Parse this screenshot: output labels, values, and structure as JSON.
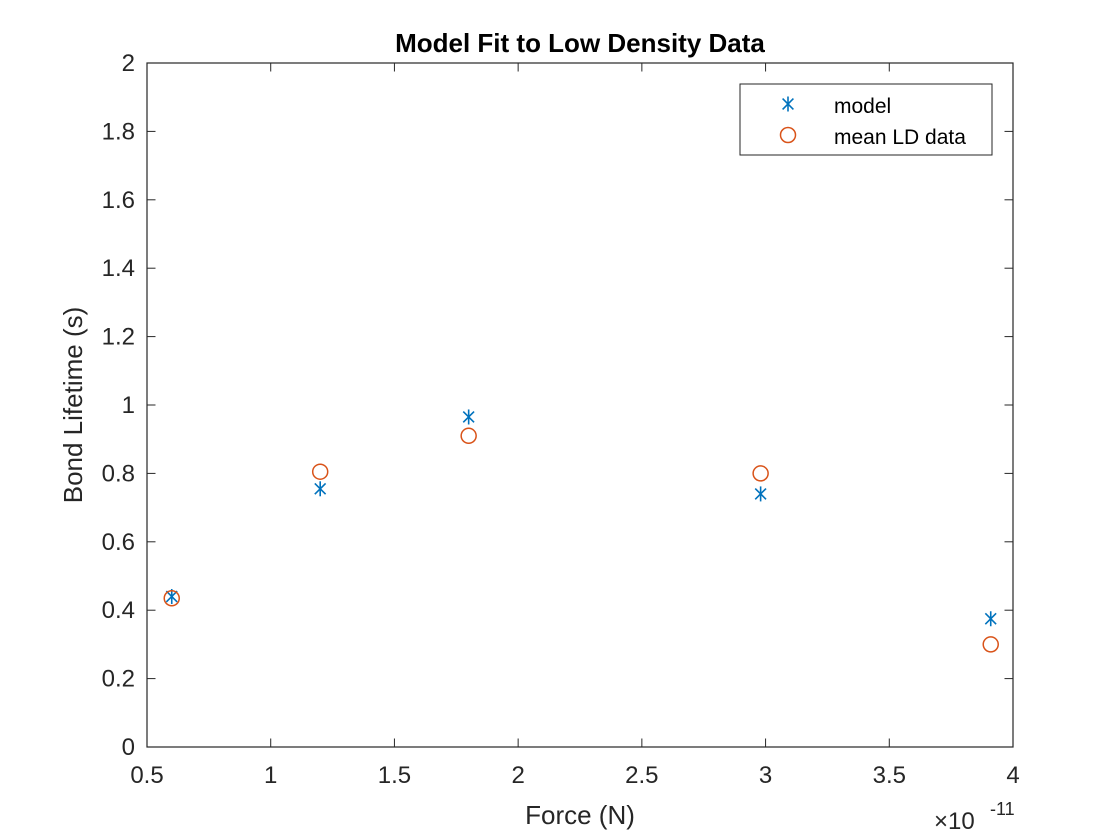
{
  "chart_data": {
    "type": "scatter",
    "title": "Model Fit to Low Density Data",
    "xlabel": "Force (N)",
    "ylabel": "Bond Lifetime (s)",
    "x_exponent_label": {
      "base": "×10",
      "power": "-11"
    },
    "xlim": [
      0.5,
      4
    ],
    "ylim": [
      0,
      2
    ],
    "x_ticks": [
      0.5,
      1,
      1.5,
      2,
      2.5,
      3,
      3.5,
      4
    ],
    "x_tick_labels": [
      "0.5",
      "1",
      "1.5",
      "2",
      "2.5",
      "3",
      "3.5",
      "4"
    ],
    "y_ticks": [
      0,
      0.2,
      0.4,
      0.6,
      0.8,
      1,
      1.2,
      1.4,
      1.6,
      1.8,
      2
    ],
    "y_tick_labels": [
      "0",
      "0.2",
      "0.4",
      "0.6",
      "0.8",
      "1",
      "1.2",
      "1.4",
      "1.6",
      "1.8",
      "2"
    ],
    "grid": false,
    "legend_position": "top-right",
    "series": [
      {
        "name": "model",
        "marker": "asterisk",
        "color": "#0072BD",
        "x": [
          0.6,
          1.2,
          1.8,
          2.98,
          3.91
        ],
        "y": [
          0.44,
          0.755,
          0.965,
          0.74,
          0.375
        ]
      },
      {
        "name": "mean LD data",
        "marker": "circle",
        "color": "#D95319",
        "x": [
          0.6,
          1.2,
          1.8,
          2.98,
          3.91
        ],
        "y": [
          0.435,
          0.805,
          0.91,
          0.8,
          0.3
        ]
      }
    ]
  }
}
